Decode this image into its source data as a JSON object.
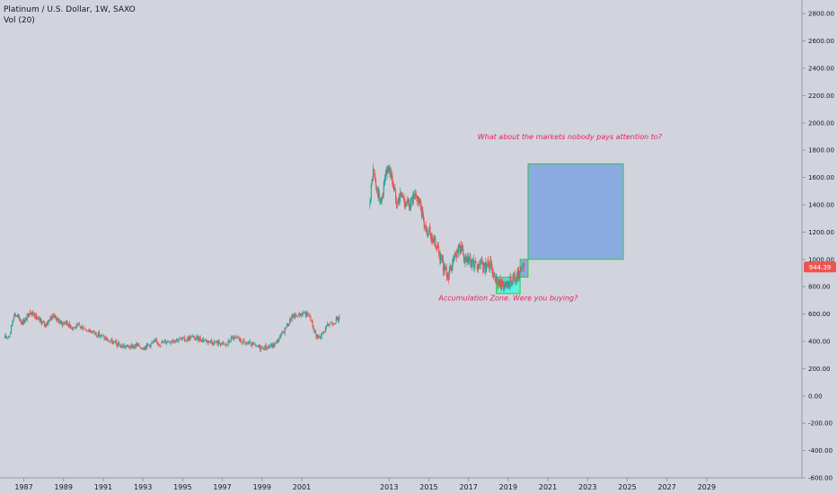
{
  "legend": {
    "symbol": "Platinum / U.S. Dollar, 1W, SAXO",
    "volume": "Vol (20)"
  },
  "colors": {
    "background": "#d1d4dc",
    "up": "#26a69a",
    "down": "#ef5350",
    "last_price_tag": "#ef5350",
    "annotation_text": "#e91e63",
    "accumulation_fill": "#5ef0e0",
    "target_fill": "#8aaae0",
    "box_border": "#2ecc40"
  },
  "chart_data": {
    "type": "candlestick",
    "title": "Platinum / U.S. Dollar, 1W, SAXO",
    "indicator": "Vol (20)",
    "last_price": 944.39,
    "last_price_label": "944.39",
    "ylim": [
      -600,
      2900
    ],
    "xlim": [
      1985.8,
      2033.8
    ],
    "y_ticks": [
      {
        "value": 2800,
        "label": "2800.00"
      },
      {
        "value": 2600,
        "label": "2600.00"
      },
      {
        "value": 2400,
        "label": "2400.00"
      },
      {
        "value": 2200,
        "label": "2200.00"
      },
      {
        "value": 2000,
        "label": "2000.00"
      },
      {
        "value": 1800,
        "label": "1800.00"
      },
      {
        "value": 1600,
        "label": "1600.00"
      },
      {
        "value": 1400,
        "label": "1400.00"
      },
      {
        "value": 1200,
        "label": "1200.00"
      },
      {
        "value": 1000,
        "label": "1000.00"
      },
      {
        "value": 800,
        "label": "800.00"
      },
      {
        "value": 600,
        "label": "600.00"
      },
      {
        "value": 400,
        "label": "400.00"
      },
      {
        "value": 200,
        "label": "200.00"
      },
      {
        "value": 0,
        "label": "0.00"
      },
      {
        "value": -200,
        "label": "-200.00"
      },
      {
        "value": -400,
        "label": "-400.00"
      },
      {
        "value": -600,
        "label": "-600.00"
      }
    ],
    "x_ticks": [
      {
        "value": 1987,
        "label": "1987"
      },
      {
        "value": 1989,
        "label": "1989"
      },
      {
        "value": 1991,
        "label": "1991"
      },
      {
        "value": 1993,
        "label": "1993"
      },
      {
        "value": 1995,
        "label": "1995"
      },
      {
        "value": 1997,
        "label": "1997"
      },
      {
        "value": 1999,
        "label": "1999"
      },
      {
        "value": 2001,
        "label": "2001"
      },
      {
        "value": 2013,
        "label": "2013"
      },
      {
        "value": 2015,
        "label": "2015"
      },
      {
        "value": 2017,
        "label": "2017"
      },
      {
        "value": 2019,
        "label": "2019"
      },
      {
        "value": 2021,
        "label": "2021"
      },
      {
        "value": 2023,
        "label": "2023"
      },
      {
        "value": 2025,
        "label": "2025"
      },
      {
        "value": 2027,
        "label": "2027"
      },
      {
        "value": 2029,
        "label": "2029"
      }
    ],
    "segments": [
      {
        "name": "1986-2004",
        "points": [
          [
            1986.0,
            420
          ],
          [
            1986.3,
            450
          ],
          [
            1986.5,
            600
          ],
          [
            1986.7,
            580
          ],
          [
            1986.9,
            540
          ],
          [
            1987.1,
            560
          ],
          [
            1987.3,
            620
          ],
          [
            1987.5,
            600
          ],
          [
            1987.7,
            560
          ],
          [
            1987.9,
            540
          ],
          [
            1988.1,
            520
          ],
          [
            1988.3,
            560
          ],
          [
            1988.5,
            590
          ],
          [
            1988.7,
            560
          ],
          [
            1988.9,
            530
          ],
          [
            1989.1,
            540
          ],
          [
            1989.3,
            520
          ],
          [
            1989.5,
            500
          ],
          [
            1989.8,
            510
          ],
          [
            1990.0,
            500
          ],
          [
            1990.3,
            480
          ],
          [
            1990.6,
            460
          ],
          [
            1990.9,
            440
          ],
          [
            1991.2,
            410
          ],
          [
            1991.5,
            390
          ],
          [
            1991.8,
            370
          ],
          [
            1992.1,
            360
          ],
          [
            1992.4,
            360
          ],
          [
            1992.7,
            370
          ],
          [
            1993.0,
            355
          ],
          [
            1993.3,
            375
          ],
          [
            1993.6,
            395
          ],
          [
            1993.9,
            385
          ],
          [
            1994.2,
            400
          ],
          [
            1994.5,
            410
          ],
          [
            1994.8,
            415
          ],
          [
            1995.1,
            410
          ],
          [
            1995.4,
            430
          ],
          [
            1995.7,
            420
          ],
          [
            1996.0,
            415
          ],
          [
            1996.3,
            400
          ],
          [
            1996.6,
            395
          ],
          [
            1996.9,
            385
          ],
          [
            1997.2,
            370
          ],
          [
            1997.5,
            430
          ],
          [
            1997.8,
            410
          ],
          [
            1998.1,
            390
          ],
          [
            1998.4,
            380
          ],
          [
            1998.7,
            360
          ],
          [
            1999.0,
            355
          ],
          [
            1999.3,
            360
          ],
          [
            1999.6,
            370
          ],
          [
            1999.9,
            430
          ],
          [
            2000.2,
            500
          ],
          [
            2000.5,
            580
          ],
          [
            2000.8,
            590
          ],
          [
            2001.1,
            610
          ],
          [
            2001.4,
            580
          ],
          [
            2001.7,
            450
          ],
          [
            2001.9,
            420
          ],
          [
            2002.1,
            470
          ],
          [
            2002.4,
            530
          ],
          [
            2002.7,
            550
          ],
          [
            2002.9,
            570
          ]
        ]
      },
      {
        "name": "2012-2020",
        "points": [
          [
            2012.0,
            1400
          ],
          [
            2012.2,
            1650
          ],
          [
            2012.4,
            1500
          ],
          [
            2012.6,
            1420
          ],
          [
            2012.8,
            1600
          ],
          [
            2013.0,
            1680
          ],
          [
            2013.2,
            1550
          ],
          [
            2013.4,
            1420
          ],
          [
            2013.6,
            1480
          ],
          [
            2013.8,
            1420
          ],
          [
            2014.0,
            1400
          ],
          [
            2014.2,
            1440
          ],
          [
            2014.4,
            1460
          ],
          [
            2014.6,
            1380
          ],
          [
            2014.8,
            1250
          ],
          [
            2015.0,
            1200
          ],
          [
            2015.2,
            1150
          ],
          [
            2015.4,
            1100
          ],
          [
            2015.6,
            1000
          ],
          [
            2015.8,
            920
          ],
          [
            2016.0,
            880
          ],
          [
            2016.2,
            980
          ],
          [
            2016.4,
            1050
          ],
          [
            2016.6,
            1100
          ],
          [
            2016.8,
            980
          ],
          [
            2017.0,
            980
          ],
          [
            2017.2,
            960
          ],
          [
            2017.4,
            940
          ],
          [
            2017.6,
            960
          ],
          [
            2017.8,
            930
          ],
          [
            2018.0,
            980
          ],
          [
            2018.2,
            930
          ],
          [
            2018.4,
            870
          ],
          [
            2018.6,
            820
          ],
          [
            2018.8,
            800
          ],
          [
            2019.0,
            800
          ],
          [
            2019.2,
            860
          ],
          [
            2019.4,
            850
          ],
          [
            2019.6,
            920
          ],
          [
            2019.8,
            944
          ]
        ]
      }
    ],
    "annotations": [
      {
        "type": "rectangle",
        "name": "accumulation-zone",
        "x": [
          2018.4,
          2019.6
        ],
        "y": [
          750,
          870
        ],
        "fill_key": "accumulation_fill"
      },
      {
        "type": "rectangle",
        "name": "step-box-1",
        "x": [
          2019.6,
          2020.0
        ],
        "y": [
          870,
          1000
        ],
        "fill_key": "target_fill"
      },
      {
        "type": "rectangle",
        "name": "target-box",
        "x": [
          2020.0,
          2024.8
        ],
        "y": [
          1000,
          1700
        ],
        "fill_key": "target_fill"
      },
      {
        "type": "text",
        "name": "question-label",
        "text": "What about the markets nobody pays attention to?",
        "x": 2022.1,
        "y": 1880
      },
      {
        "type": "text",
        "name": "accumulation-label",
        "text": "Accumulation Zone. Were you buying?",
        "x": 2019.0,
        "y": 700
      }
    ]
  }
}
